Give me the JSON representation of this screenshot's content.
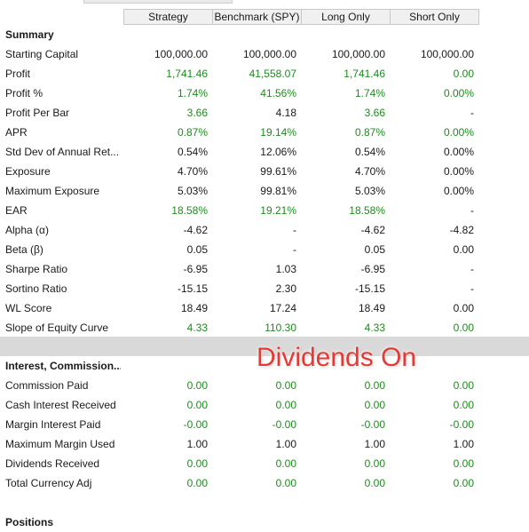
{
  "header": {
    "columns": [
      "Strategy",
      "Benchmark (SPY)",
      "Long Only",
      "Short Only"
    ]
  },
  "summary_section": {
    "title": "Summary",
    "rows": [
      {
        "label": "Starting Capital",
        "values": [
          "100,000.00",
          "100,000.00",
          "100,000.00",
          "100,000.00"
        ],
        "colors": [
          "neutral",
          "neutral",
          "neutral",
          "neutral"
        ]
      },
      {
        "label": "Profit",
        "values": [
          "1,741.46",
          "41,558.07",
          "1,741.46",
          "0.00"
        ],
        "colors": [
          "pos",
          "pos",
          "pos",
          "pos"
        ]
      },
      {
        "label": "Profit %",
        "values": [
          "1.74%",
          "41.56%",
          "1.74%",
          "0.00%"
        ],
        "colors": [
          "pos",
          "pos",
          "pos",
          "pos"
        ]
      },
      {
        "label": "Profit Per Bar",
        "values": [
          "3.66",
          "4.18",
          "3.66",
          "-"
        ],
        "colors": [
          "pos",
          "neutral",
          "pos",
          "neutral"
        ]
      },
      {
        "label": "APR",
        "values": [
          "0.87%",
          "19.14%",
          "0.87%",
          "0.00%"
        ],
        "colors": [
          "pos",
          "pos",
          "pos",
          "pos"
        ]
      },
      {
        "label": "Std Dev of Annual Ret...",
        "values": [
          "0.54%",
          "12.06%",
          "0.54%",
          "0.00%"
        ],
        "colors": [
          "neutral",
          "neutral",
          "neutral",
          "neutral"
        ]
      },
      {
        "label": "Exposure",
        "values": [
          "4.70%",
          "99.61%",
          "4.70%",
          "0.00%"
        ],
        "colors": [
          "neutral",
          "neutral",
          "neutral",
          "neutral"
        ]
      },
      {
        "label": "Maximum Exposure",
        "values": [
          "5.03%",
          "99.81%",
          "5.03%",
          "0.00%"
        ],
        "colors": [
          "neutral",
          "neutral",
          "neutral",
          "neutral"
        ]
      },
      {
        "label": "EAR",
        "values": [
          "18.58%",
          "19.21%",
          "18.58%",
          "-"
        ],
        "colors": [
          "pos",
          "pos",
          "pos",
          "neutral"
        ]
      },
      {
        "label": "Alpha (α)",
        "values": [
          "-4.62",
          "-",
          "-4.62",
          "-4.82"
        ],
        "colors": [
          "neutral",
          "neutral",
          "neutral",
          "neutral"
        ]
      },
      {
        "label": "Beta (β)",
        "values": [
          "0.05",
          "-",
          "0.05",
          "0.00"
        ],
        "colors": [
          "neutral",
          "neutral",
          "neutral",
          "neutral"
        ]
      },
      {
        "label": "Sharpe Ratio",
        "values": [
          "-6.95",
          "1.03",
          "-6.95",
          "-"
        ],
        "colors": [
          "neutral",
          "neutral",
          "neutral",
          "neutral"
        ]
      },
      {
        "label": "Sortino Ratio",
        "values": [
          "-15.15",
          "2.30",
          "-15.15",
          "-"
        ],
        "colors": [
          "neutral",
          "neutral",
          "neutral",
          "neutral"
        ]
      },
      {
        "label": "WL Score",
        "values": [
          "18.49",
          "17.24",
          "18.49",
          "0.00"
        ],
        "colors": [
          "neutral",
          "neutral",
          "neutral",
          "neutral"
        ]
      },
      {
        "label": "Slope of Equity Curve",
        "values": [
          "4.33",
          "110.30",
          "4.33",
          "0.00"
        ],
        "colors": [
          "pos",
          "pos",
          "pos",
          "pos"
        ]
      }
    ]
  },
  "interest_section": {
    "title": "Interest, Commission...",
    "rows": [
      {
        "label": "Commission Paid",
        "values": [
          "0.00",
          "0.00",
          "0.00",
          "0.00"
        ],
        "colors": [
          "pos",
          "pos",
          "pos",
          "pos"
        ]
      },
      {
        "label": "Cash Interest Received",
        "values": [
          "0.00",
          "0.00",
          "0.00",
          "0.00"
        ],
        "colors": [
          "pos",
          "pos",
          "pos",
          "pos"
        ]
      },
      {
        "label": "Margin Interest Paid",
        "values": [
          "-0.00",
          "-0.00",
          "-0.00",
          "-0.00"
        ],
        "colors": [
          "pos",
          "pos",
          "pos",
          "pos"
        ]
      },
      {
        "label": "Maximum Margin Used",
        "values": [
          "1.00",
          "1.00",
          "1.00",
          "1.00"
        ],
        "colors": [
          "neutral",
          "neutral",
          "neutral",
          "neutral"
        ]
      },
      {
        "label": "Dividends Received",
        "values": [
          "0.00",
          "0.00",
          "0.00",
          "0.00"
        ],
        "colors": [
          "pos",
          "pos",
          "pos",
          "pos"
        ]
      },
      {
        "label": "Total Currency Adj",
        "values": [
          "0.00",
          "0.00",
          "0.00",
          "0.00"
        ],
        "colors": [
          "pos",
          "pos",
          "pos",
          "pos"
        ]
      }
    ]
  },
  "positions_section": {
    "title": "Positions"
  },
  "overlay": {
    "text": "Dividends On"
  },
  "colors": {
    "positive": "#1f8a1f",
    "neutral": "#1a1a1a",
    "overlay": "#e53935",
    "band": "#d9d9d9",
    "header_bg": "#f0f0f0"
  }
}
